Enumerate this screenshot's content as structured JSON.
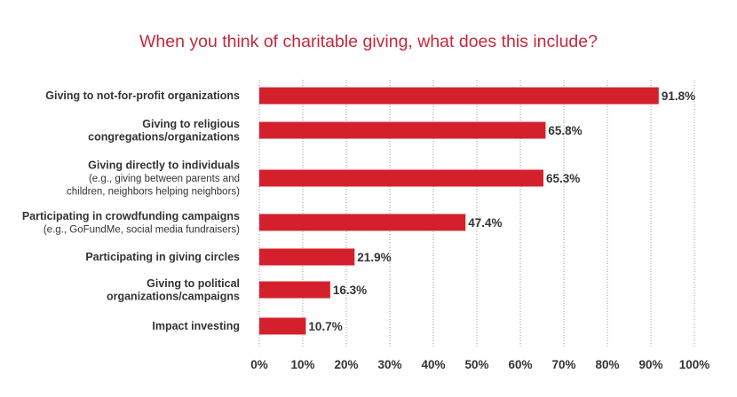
{
  "chart_data": {
    "type": "bar",
    "orientation": "horizontal",
    "title": "When you think of charitable giving, what does this include?",
    "categories": [
      {
        "main": [
          "Giving to not-for-profit organizations"
        ],
        "sub": []
      },
      {
        "main": [
          "Giving to religious",
          "congregations/organizations"
        ],
        "sub": []
      },
      {
        "main": [
          "Giving directly to individuals"
        ],
        "sub": [
          "(e.g., giving between parents and",
          "children, neighbors helping neighbors)"
        ]
      },
      {
        "main": [
          "Participating in crowdfunding campaigns"
        ],
        "sub": [
          "(e.g., GoFundMe, social media fundraisers)"
        ]
      },
      {
        "main": [
          "Participating in giving circles"
        ],
        "sub": []
      },
      {
        "main": [
          "Giving to political",
          "organizations/campaigns"
        ],
        "sub": []
      },
      {
        "main": [
          "Impact investing"
        ],
        "sub": []
      }
    ],
    "values": [
      91.8,
      65.8,
      65.3,
      47.4,
      21.9,
      16.3,
      10.7
    ],
    "value_labels": [
      "91.8%",
      "65.8%",
      "65.3%",
      "47.4%",
      "21.9%",
      "16.3%",
      "10.7%"
    ],
    "xlim": [
      0,
      100
    ],
    "x_ticks": [
      "0%",
      "10%",
      "20%",
      "30%",
      "40%",
      "50%",
      "60%",
      "70%",
      "80%",
      "90%",
      "100%"
    ],
    "grid": "vertical dotted",
    "bar_color": "#d4202c",
    "title_color": "#c5283d"
  }
}
